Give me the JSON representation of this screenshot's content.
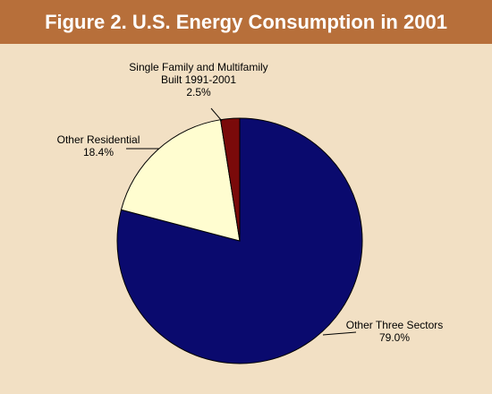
{
  "header": {
    "title": "Figure 2. U.S. Energy Consumption in 2001"
  },
  "chart_data": {
    "type": "pie",
    "title": "Figure 2. U.S. Energy Consumption in 2001",
    "slices": [
      {
        "label_lines": [
          "Other Three Sectors",
          "79.0%"
        ],
        "value": 79.0,
        "color": "#0a0a6e"
      },
      {
        "label_lines": [
          "Other Residential",
          "18.4%"
        ],
        "value": 18.4,
        "color": "#fffdd0"
      },
      {
        "label_lines": [
          "Single Family and Multifamily",
          "Built 1991-2001",
          "2.5%"
        ],
        "value": 2.5,
        "color": "#7a0a0a"
      }
    ]
  }
}
